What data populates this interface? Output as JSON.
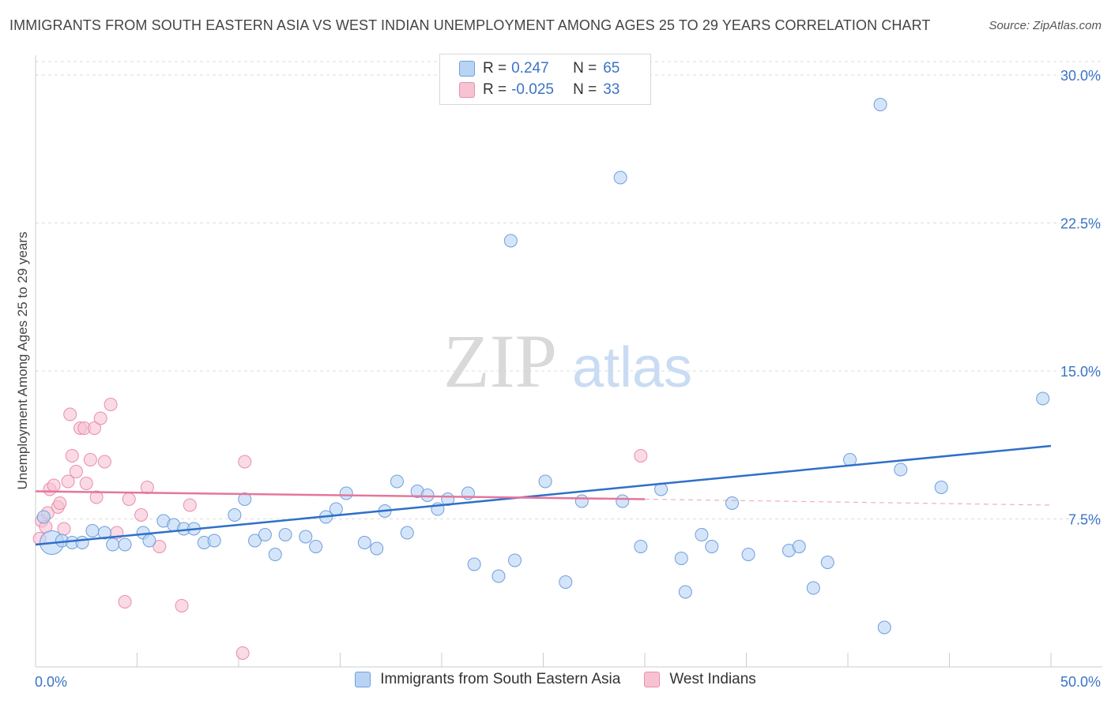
{
  "header": {
    "title": "IMMIGRANTS FROM SOUTH EASTERN ASIA VS WEST INDIAN UNEMPLOYMENT AMONG AGES 25 TO 29 YEARS CORRELATION CHART",
    "source": "Source: ZipAtlas.com"
  },
  "watermark": {
    "zip": "ZIP",
    "atlas": "atlas"
  },
  "legend": {
    "r_label": "R =",
    "n_label": "N =",
    "rows": [
      {
        "r": "0.247",
        "n": "65"
      },
      {
        "r": "-0.025",
        "n": "33"
      }
    ]
  },
  "colors": {
    "blue_fill": "#b9d3f5",
    "blue_stroke": "#6f9fdc",
    "blue_line": "#2f6fc9",
    "pink_fill": "#f7c2d2",
    "pink_stroke": "#e98fab",
    "pink_line": "#e5769c",
    "tick_label": "#3a74c7",
    "grid": "#dddddd"
  },
  "chart_data": {
    "type": "scatter",
    "title": "IMMIGRANTS FROM SOUTH EASTERN ASIA VS WEST INDIAN UNEMPLOYMENT AMONG AGES 25 TO 29 YEARS CORRELATION CHART",
    "xlabel": "",
    "ylabel": "Unemployment Among Ages 25 to 29 years",
    "xlim": [
      0,
      50
    ],
    "ylim": [
      0,
      31
    ],
    "x_tick_labels": [
      "0.0%",
      "50.0%"
    ],
    "y_ticks": [
      7.5,
      15.0,
      22.5,
      30.0
    ],
    "y_tick_labels": [
      "7.5%",
      "15.0%",
      "22.5%",
      "30.0%"
    ],
    "grid": "horizontal dashed",
    "legend_position": "top-center",
    "series": [
      {
        "name": "Immigrants from South Eastern Asia",
        "r": 0.247,
        "n": 65,
        "trend": {
          "x": [
            0,
            50
          ],
          "y": [
            6.2,
            11.2
          ]
        },
        "points": [
          [
            0.4,
            7.6
          ],
          [
            0.8,
            6.3
          ],
          [
            1.3,
            6.4
          ],
          [
            1.8,
            6.3
          ],
          [
            2.3,
            6.3
          ],
          [
            2.8,
            6.9
          ],
          [
            3.4,
            6.8
          ],
          [
            3.8,
            6.2
          ],
          [
            4.4,
            6.2
          ],
          [
            5.3,
            6.8
          ],
          [
            5.6,
            6.4
          ],
          [
            6.3,
            7.4
          ],
          [
            6.8,
            7.2
          ],
          [
            7.3,
            7.0
          ],
          [
            7.8,
            7.0
          ],
          [
            8.3,
            6.3
          ],
          [
            8.8,
            6.4
          ],
          [
            9.8,
            7.7
          ],
          [
            10.3,
            8.5
          ],
          [
            10.8,
            6.4
          ],
          [
            11.3,
            6.7
          ],
          [
            11.8,
            5.7
          ],
          [
            12.3,
            6.7
          ],
          [
            13.3,
            6.6
          ],
          [
            13.8,
            6.1
          ],
          [
            14.3,
            7.6
          ],
          [
            14.8,
            8.0
          ],
          [
            15.3,
            8.8
          ],
          [
            16.2,
            6.3
          ],
          [
            16.8,
            6.0
          ],
          [
            17.2,
            7.9
          ],
          [
            17.8,
            9.4
          ],
          [
            18.3,
            6.8
          ],
          [
            18.8,
            8.9
          ],
          [
            19.3,
            8.7
          ],
          [
            19.8,
            8.0
          ],
          [
            20.3,
            8.5
          ],
          [
            21.3,
            8.8
          ],
          [
            21.6,
            5.2
          ],
          [
            22.8,
            4.6
          ],
          [
            23.6,
            5.4
          ],
          [
            23.4,
            21.6
          ],
          [
            25.1,
            9.4
          ],
          [
            26.1,
            4.3
          ],
          [
            26.9,
            8.4
          ],
          [
            28.8,
            24.8
          ],
          [
            28.9,
            8.4
          ],
          [
            29.8,
            6.1
          ],
          [
            30.8,
            9.0
          ],
          [
            31.8,
            5.5
          ],
          [
            32.0,
            3.8
          ],
          [
            32.8,
            6.7
          ],
          [
            33.3,
            6.1
          ],
          [
            34.3,
            8.3
          ],
          [
            35.1,
            5.7
          ],
          [
            37.1,
            5.9
          ],
          [
            37.6,
            6.1
          ],
          [
            38.3,
            4.0
          ],
          [
            39.0,
            5.3
          ],
          [
            40.1,
            10.5
          ],
          [
            41.6,
            28.5
          ],
          [
            41.8,
            2.0
          ],
          [
            42.6,
            10.0
          ],
          [
            44.6,
            9.1
          ],
          [
            49.6,
            13.6
          ]
        ]
      },
      {
        "name": "West Indians",
        "r": -0.025,
        "n": 33,
        "trend": {
          "x": [
            0,
            30
          ],
          "y": [
            8.9,
            8.5
          ]
        },
        "trend_dashed": {
          "x": [
            30,
            50
          ],
          "y": [
            8.5,
            8.2
          ]
        },
        "points": [
          [
            0.3,
            7.4
          ],
          [
            0.5,
            7.1
          ],
          [
            0.6,
            7.8
          ],
          [
            0.7,
            9.0
          ],
          [
            0.9,
            9.2
          ],
          [
            1.1,
            8.1
          ],
          [
            1.2,
            8.3
          ],
          [
            1.4,
            7.0
          ],
          [
            1.6,
            9.4
          ],
          [
            1.7,
            12.8
          ],
          [
            1.8,
            10.7
          ],
          [
            2.0,
            9.9
          ],
          [
            2.2,
            12.1
          ],
          [
            2.4,
            12.1
          ],
          [
            2.5,
            9.3
          ],
          [
            2.7,
            10.5
          ],
          [
            2.9,
            12.1
          ],
          [
            3.0,
            8.6
          ],
          [
            3.2,
            12.6
          ],
          [
            3.4,
            10.4
          ],
          [
            3.7,
            13.3
          ],
          [
            4.0,
            6.8
          ],
          [
            4.4,
            3.3
          ],
          [
            4.6,
            8.5
          ],
          [
            5.2,
            7.7
          ],
          [
            5.5,
            9.1
          ],
          [
            6.1,
            6.1
          ],
          [
            7.6,
            8.2
          ],
          [
            7.2,
            3.1
          ],
          [
            10.3,
            10.4
          ],
          [
            10.2,
            0.7
          ],
          [
            29.8,
            10.7
          ],
          [
            0.2,
            6.5
          ]
        ]
      }
    ]
  },
  "bottom_legend": [
    {
      "label": "Immigrants from South Eastern Asia"
    },
    {
      "label": "West Indians"
    }
  ]
}
